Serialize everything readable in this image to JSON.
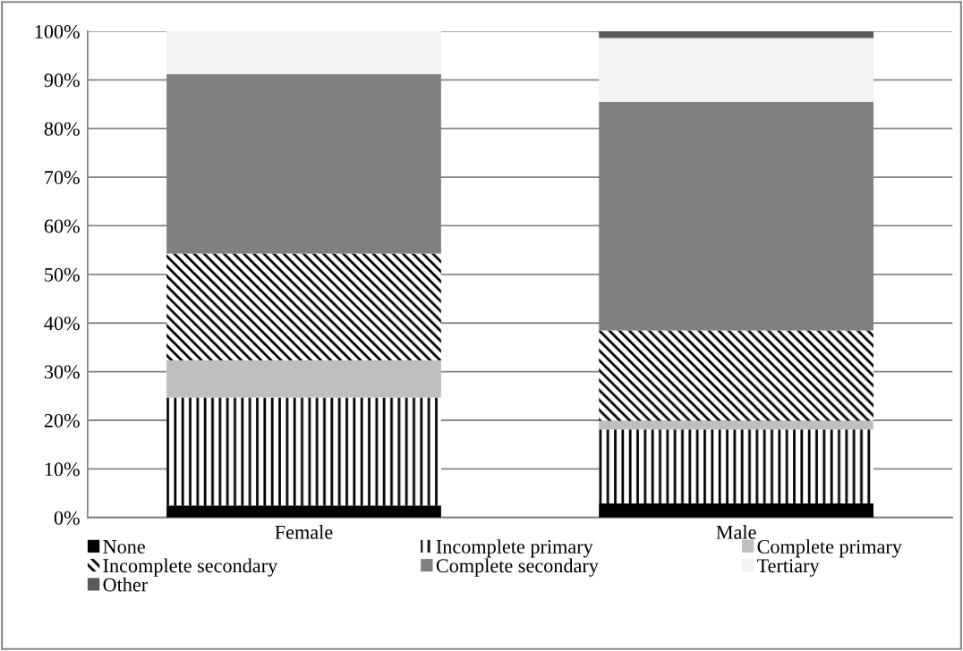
{
  "chart_data": {
    "type": "bar",
    "stacked": true,
    "categories": [
      "Female",
      "Male"
    ],
    "series": [
      {
        "name": "None",
        "color": "#000000",
        "values": [
          2.5,
          2.9
        ]
      },
      {
        "name": "Incomplete primary",
        "color": "#000000",
        "values": [
          22.2,
          15.2
        ]
      },
      {
        "name": "Complete primary",
        "color": "#bfbfbf",
        "values": [
          7.6,
          1.8
        ]
      },
      {
        "name": "Incomplete secondary",
        "color": "#000000",
        "values": [
          22.0,
          18.6
        ]
      },
      {
        "name": "Complete secondary",
        "color": "#808080",
        "values": [
          36.9,
          47.0
        ]
      },
      {
        "name": "Tertiary",
        "color": "#f2f2f2",
        "values": [
          8.8,
          13.1
        ]
      },
      {
        "name": "Other",
        "color": "#595959",
        "values": [
          0,
          1.4
        ]
      }
    ],
    "ylim": [
      0,
      100
    ],
    "yticks": [
      {
        "value": 0,
        "label": "0%"
      },
      {
        "value": 10,
        "label": "10%"
      },
      {
        "value": 20,
        "label": "20%"
      },
      {
        "value": 30,
        "label": "30%"
      },
      {
        "value": 40,
        "label": "40%"
      },
      {
        "value": 50,
        "label": "50%"
      },
      {
        "value": 60,
        "label": "60%"
      },
      {
        "value": 70,
        "label": "70%"
      },
      {
        "value": 80,
        "label": "80%"
      },
      {
        "value": 90,
        "label": "90%"
      },
      {
        "value": 100,
        "label": "100%"
      }
    ],
    "grid": "y",
    "legend": "bottom"
  }
}
